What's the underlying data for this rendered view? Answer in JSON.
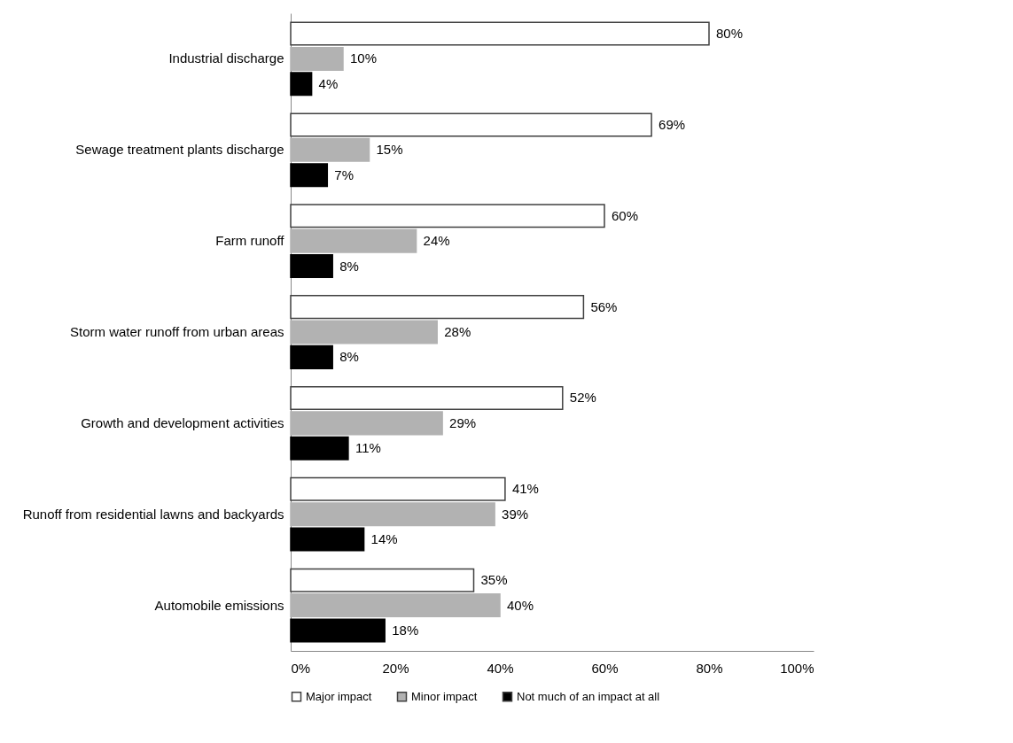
{
  "chart_data": {
    "type": "bar",
    "orientation": "horizontal",
    "categories": [
      "Industrial discharge",
      "Sewage treatment plants discharge",
      "Farm runoff",
      "Storm water runoff from urban areas",
      "Growth and development activities",
      "Runoff from residential lawns and backyards",
      "Automobile emissions"
    ],
    "series": [
      {
        "name": "Major impact",
        "color": "#ffffff",
        "values": [
          80,
          69,
          60,
          56,
          52,
          41,
          35
        ],
        "value_labels": [
          "80%",
          "69%",
          "60%",
          "56%",
          "52%",
          "41%",
          "35%"
        ]
      },
      {
        "name": "Minor impact",
        "color": "#b2b2b2",
        "values": [
          10,
          15,
          24,
          28,
          29,
          39,
          40
        ],
        "value_labels": [
          "10%",
          "15%",
          "24%",
          "28%",
          "29%",
          "39%",
          "40%"
        ]
      },
      {
        "name": "Not much of an impact at all",
        "color": "#000000",
        "values": [
          4,
          7,
          8,
          8,
          11,
          14,
          18
        ],
        "value_labels": [
          "4%",
          "7%",
          "8%",
          "8%",
          "11%",
          "14%",
          "18%"
        ]
      }
    ],
    "xlim": [
      0,
      100
    ],
    "xticks": [
      {
        "value": 0,
        "label": "0%"
      },
      {
        "value": 20,
        "label": "20%"
      },
      {
        "value": 40,
        "label": "40%"
      },
      {
        "value": 60,
        "label": "60%"
      },
      {
        "value": 80,
        "label": "80%"
      },
      {
        "value": 100,
        "label": "100%"
      }
    ],
    "grid": false,
    "legend": "bottom"
  }
}
